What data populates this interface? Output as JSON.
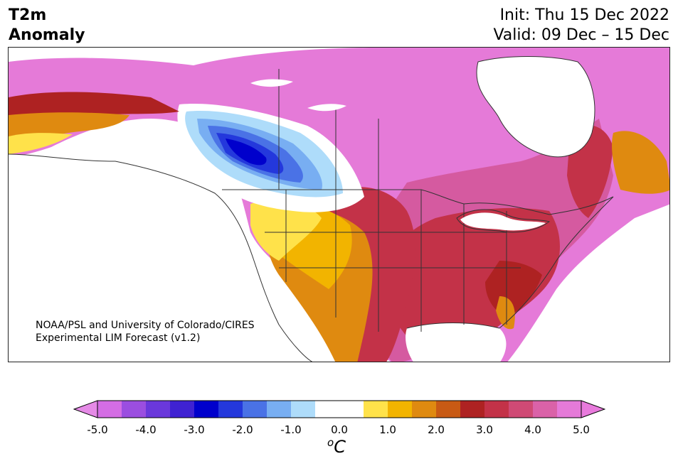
{
  "title": {
    "line1": "T2m",
    "line2": "Anomaly"
  },
  "dates": {
    "init": "Init: Thu 15 Dec 2022",
    "valid": "Valid: 09 Dec – 15 Dec"
  },
  "credit": {
    "line1": "NOAA/PSL and University of Colorado/CIRES",
    "line2": "Experimental LIM Forecast (v1.2)"
  },
  "colorbar": {
    "ticks": [
      "-5.0",
      "-4.0",
      "-3.0",
      "-2.0",
      "-1.0",
      "0.0",
      "1.0",
      "2.0",
      "3.0",
      "4.0",
      "5.0"
    ],
    "unit_base": "C",
    "unit_sup": "o",
    "colors": [
      "#d46de4",
      "#9b4ee0",
      "#6a38db",
      "#3f22d2",
      "#0000cc",
      "#2438dc",
      "#4a72e6",
      "#78aef2",
      "#aedcfa",
      "#ffffff",
      "#ffffff",
      "#ffe24a",
      "#f2b400",
      "#df8a10",
      "#c85a14",
      "#ae2222",
      "#c33248",
      "#cf4a75",
      "#da62a8",
      "#e57ad8"
    ],
    "under_color": "#e58ae6",
    "over_color": "#e87adc"
  },
  "map": {
    "region": "North America",
    "colors": {
      "pink": "#e57ad8",
      "magenta": "#d55aa0",
      "crimson": "#c33248",
      "red": "#ae2222",
      "darkorange": "#c85a14",
      "orange": "#df8a10",
      "amber": "#f2b400",
      "yellow": "#ffe24a",
      "white": "#ffffff",
      "lightblue": "#aedcfa",
      "skyblue": "#78aef2",
      "blue": "#4a72e6",
      "royal": "#2438dc",
      "navy": "#0000cc"
    }
  }
}
